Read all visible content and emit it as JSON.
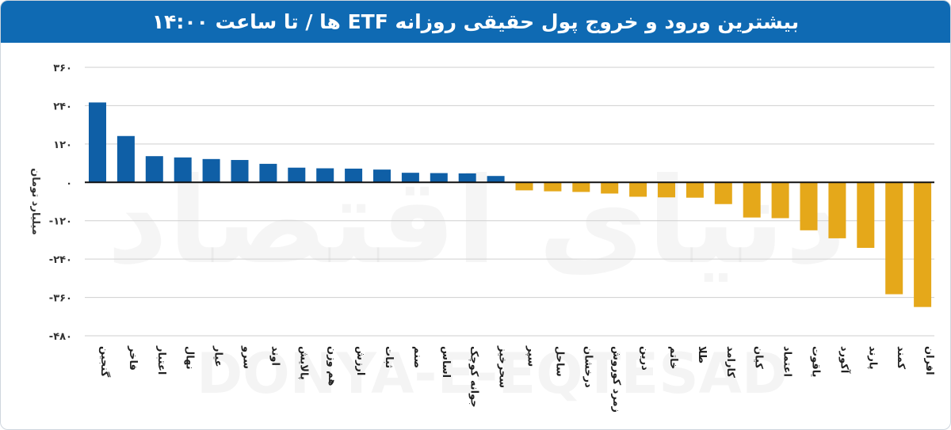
{
  "chart_data": {
    "type": "bar",
    "title": "بیشترین ورود و خروج پول حقیقی روزانه ETF ها / تا ساعت ۱۴:۰۰",
    "ylabel": "میلیارد تومان",
    "xlabel": "",
    "ylim": [
      -480,
      360
    ],
    "yticks": [
      360,
      240,
      120,
      0,
      -120,
      -240,
      -360,
      -480
    ],
    "ytick_labels": [
      "۳۶۰",
      "۲۴۰",
      "۱۲۰",
      "۰",
      "-۱۲۰",
      "-۲۴۰",
      "-۳۶۰",
      "-۴۸۰"
    ],
    "grid": true,
    "categories": [
      "گنجین",
      "فاخر",
      "اعتبار",
      "نهال",
      "عیار",
      "سرو",
      "اوند",
      "پالایش",
      "هم وزن",
      "ارزش",
      "ثبات",
      "صنم",
      "اساس",
      "جوانه کوچک",
      "سحرخیز",
      "سپر",
      "ساحل",
      "درخشان",
      "زمرد کوروش",
      "درین",
      "خاتم",
      "طلا",
      "کارامد",
      "کیان",
      "اعتماد",
      "یاقوت",
      "آکورد",
      "پارند",
      "کمند",
      "افران"
    ],
    "values": [
      250,
      145,
      82,
      78,
      73,
      70,
      58,
      46,
      44,
      43,
      40,
      30,
      29,
      28,
      20,
      -25,
      -28,
      -30,
      -35,
      -45,
      -47,
      -48,
      -68,
      -110,
      -112,
      -150,
      -175,
      -205,
      -350,
      -390
    ],
    "colors": {
      "positive": "#0f5fa6",
      "negative": "#e5a81a"
    }
  },
  "watermark": {
    "text_latin": "DONYA-E-EQTESAD",
    "text_persian": "دنیای اقتصاد"
  }
}
